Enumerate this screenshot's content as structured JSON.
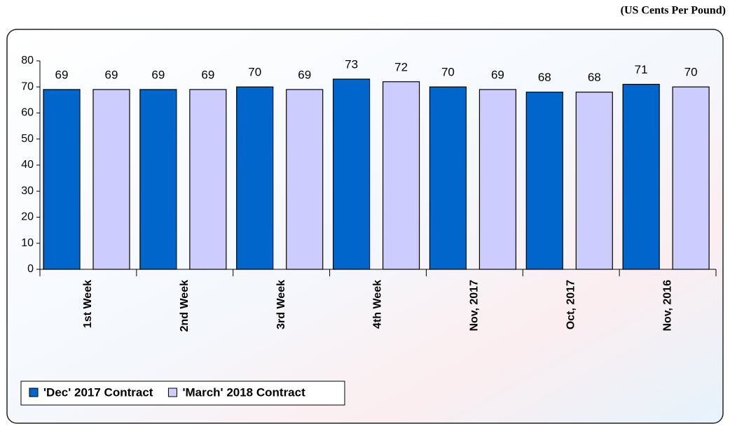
{
  "chart_data": {
    "type": "bar",
    "subtitle": "(US Cents Per Pound)",
    "categories": [
      "1st Week",
      "2nd Week",
      "3rd Week",
      "4th Week",
      "Nov, 2017",
      "Oct, 2017",
      "Nov, 2016"
    ],
    "series": [
      {
        "name": "'Dec' 2017 Contract",
        "color": "#0066cc",
        "values": [
          69,
          69,
          70,
          73,
          70,
          68,
          71
        ]
      },
      {
        "name": "'March' 2018 Contract",
        "color": "#ccccff",
        "values": [
          69,
          69,
          69,
          72,
          69,
          68,
          70
        ]
      }
    ],
    "ylim": [
      0,
      80
    ],
    "yticks": [
      0,
      10,
      20,
      30,
      40,
      50,
      60,
      70,
      80
    ],
    "grid": false,
    "legend": "bottom-left"
  }
}
